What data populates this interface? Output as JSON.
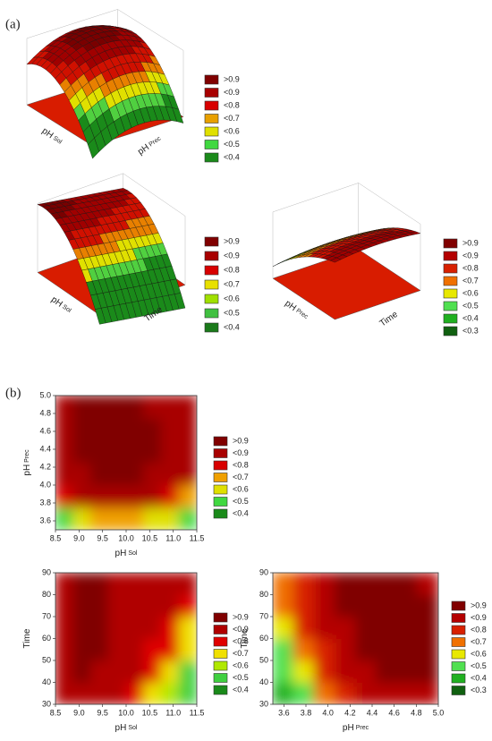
{
  "panels": [
    {
      "label": "(a)"
    },
    {
      "label": "(b)"
    }
  ],
  "chart_data": [
    {
      "type": "surface3d",
      "xlabel": "pH",
      "xlabel_sub": "Sol",
      "ylabel": "pH",
      "ylabel_sub": "Prec",
      "levels": [
        {
          "value": 0.9,
          "label": ">0.9",
          "color": "#800000"
        },
        {
          "value": 0.9,
          "label": "<0.9",
          "color": "#a80000"
        },
        {
          "value": 0.8,
          "label": "<0.8",
          "color": "#d80000"
        },
        {
          "value": 0.7,
          "label": "<0.7",
          "color": "#e8a000"
        },
        {
          "value": 0.6,
          "label": "<0.6",
          "color": "#e0e000"
        },
        {
          "value": 0.5,
          "label": "<0.5",
          "color": "#40d840"
        },
        {
          "value": 0.4,
          "label": "<0.4",
          "color": "#1a8a1a"
        }
      ]
    },
    {
      "type": "surface3d",
      "xlabel": "pH",
      "xlabel_sub": "Sol",
      "ylabel": "Time",
      "ylabel_sub": null,
      "levels": [
        {
          "value": 0.9,
          "label": ">0.9",
          "color": "#800000"
        },
        {
          "value": 0.9,
          "label": "<0.9",
          "color": "#a80000"
        },
        {
          "value": 0.8,
          "label": "<0.8",
          "color": "#d80000"
        },
        {
          "value": 0.7,
          "label": "<0.7",
          "color": "#e8e000"
        },
        {
          "value": 0.6,
          "label": "<0.6",
          "color": "#a0e000"
        },
        {
          "value": 0.5,
          "label": "<0.5",
          "color": "#40c040"
        },
        {
          "value": 0.4,
          "label": "<0.4",
          "color": "#1a7a1a"
        }
      ]
    },
    {
      "type": "surface3d",
      "xlabel": "pH",
      "xlabel_sub": "Prec",
      "ylabel": "Time",
      "ylabel_sub": null,
      "levels": [
        {
          "value": 0.9,
          "label": ">0.9",
          "color": "#800000"
        },
        {
          "value": 0.9,
          "label": "<0.9",
          "color": "#b40000"
        },
        {
          "value": 0.8,
          "label": "<0.8",
          "color": "#d82000"
        },
        {
          "value": 0.7,
          "label": "<0.7",
          "color": "#f07000"
        },
        {
          "value": 0.6,
          "label": "<0.6",
          "color": "#e8e800"
        },
        {
          "value": 0.5,
          "label": "<0.5",
          "color": "#50e050"
        },
        {
          "value": 0.4,
          "label": "<0.4",
          "color": "#20b020"
        },
        {
          "value": 0.3,
          "label": "<0.3",
          "color": "#106010"
        }
      ]
    },
    {
      "type": "contour",
      "xlabel": "pH",
      "xlabel_sub": "Sol",
      "ylabel": "pH",
      "ylabel_sub": "Prec",
      "xlim": [
        8.5,
        11.5
      ],
      "xticks": [
        8.5,
        {
          "value": 9,
          "label": "9.0"
        },
        9.5,
        {
          "value": 10,
          "label": "10.0"
        },
        10.5,
        {
          "value": 11,
          "label": "11.0"
        },
        11.5
      ],
      "ylim": [
        3.5,
        5.0
      ],
      "yticks": [
        3.6,
        3.8,
        {
          "value": 4,
          "label": "4.0"
        },
        4.2,
        4.4,
        4.6,
        4.8,
        {
          "value": 5,
          "label": "5.0"
        }
      ],
      "z": [
        [
          0.45,
          0.55,
          0.6,
          0.6,
          0.6,
          0.55,
          0.5,
          0.4
        ],
        [
          0.72,
          0.8,
          0.83,
          0.84,
          0.83,
          0.8,
          0.75,
          0.68
        ],
        [
          0.84,
          0.88,
          0.9,
          0.91,
          0.9,
          0.88,
          0.85,
          0.8
        ],
        [
          0.88,
          0.92,
          0.94,
          0.94,
          0.93,
          0.91,
          0.88,
          0.84
        ],
        [
          0.88,
          0.92,
          0.94,
          0.94,
          0.93,
          0.91,
          0.88,
          0.84
        ],
        [
          0.86,
          0.9,
          0.92,
          0.92,
          0.91,
          0.89,
          0.86,
          0.82
        ]
      ],
      "levels": [
        {
          "value": 0.9,
          "label": ">0.9",
          "color": "#800000"
        },
        {
          "value": 0.9,
          "label": "<0.9",
          "color": "#a80000"
        },
        {
          "value": 0.8,
          "label": "<0.8",
          "color": "#d80000"
        },
        {
          "value": 0.7,
          "label": "<0.7",
          "color": "#f0a000"
        },
        {
          "value": 0.6,
          "label": "<0.6",
          "color": "#e0e000"
        },
        {
          "value": 0.5,
          "label": "<0.5",
          "color": "#40d840"
        },
        {
          "value": 0.4,
          "label": "<0.4",
          "color": "#1a8a1a"
        }
      ]
    },
    {
      "type": "contour",
      "xlabel": "pH",
      "xlabel_sub": "Sol",
      "ylabel": "Time",
      "ylabel_sub": null,
      "xlim": [
        8.5,
        11.5
      ],
      "xticks": [
        8.5,
        {
          "value": 9,
          "label": "9.0"
        },
        9.5,
        {
          "value": 10,
          "label": "10.0"
        },
        10.5,
        {
          "value": 11,
          "label": "11.0"
        },
        11.5
      ],
      "ylim": [
        30,
        90
      ],
      "yticks": [
        30,
        40,
        50,
        60,
        70,
        80,
        90
      ],
      "z": [
        [
          0.86,
          0.88,
          0.87,
          0.83,
          0.76,
          0.65,
          0.52,
          0.4
        ],
        [
          0.87,
          0.9,
          0.89,
          0.86,
          0.8,
          0.72,
          0.6,
          0.48
        ],
        [
          0.88,
          0.91,
          0.9,
          0.88,
          0.84,
          0.78,
          0.7,
          0.6
        ],
        [
          0.88,
          0.91,
          0.91,
          0.89,
          0.86,
          0.82,
          0.76,
          0.68
        ],
        [
          0.88,
          0.91,
          0.91,
          0.89,
          0.87,
          0.85,
          0.81,
          0.76
        ],
        [
          0.87,
          0.9,
          0.9,
          0.89,
          0.88,
          0.86,
          0.84,
          0.8
        ]
      ],
      "levels": [
        {
          "value": 0.9,
          "label": ">0.9",
          "color": "#800000"
        },
        {
          "value": 0.9,
          "label": "<0.9",
          "color": "#b00000"
        },
        {
          "value": 0.8,
          "label": "<0.8",
          "color": "#e00000"
        },
        {
          "value": 0.7,
          "label": "<0.7",
          "color": "#f0e000"
        },
        {
          "value": 0.6,
          "label": "<0.6",
          "color": "#b0e800"
        },
        {
          "value": 0.5,
          "label": "<0.5",
          "color": "#40d040"
        },
        {
          "value": 0.4,
          "label": "<0.4",
          "color": "#1a8a1a"
        }
      ]
    },
    {
      "type": "contour",
      "xlabel": "pH",
      "xlabel_sub": "Prec",
      "ylabel": "Time",
      "ylabel_sub": null,
      "xlim": [
        3.5,
        5.0
      ],
      "xticks": [
        3.6,
        3.8,
        {
          "value": 4,
          "label": "4.0"
        },
        4.2,
        4.4,
        4.6,
        4.8,
        {
          "value": 5,
          "label": "5.0"
        }
      ],
      "ylim": [
        30,
        90
      ],
      "yticks": [
        30,
        40,
        50,
        60,
        70,
        80,
        90
      ],
      "z": [
        [
          0.3,
          0.45,
          0.6,
          0.72,
          0.8,
          0.85,
          0.88,
          0.88
        ],
        [
          0.4,
          0.55,
          0.7,
          0.8,
          0.86,
          0.9,
          0.92,
          0.91
        ],
        [
          0.48,
          0.63,
          0.77,
          0.85,
          0.9,
          0.93,
          0.94,
          0.92
        ],
        [
          0.55,
          0.7,
          0.82,
          0.88,
          0.92,
          0.94,
          0.94,
          0.92
        ],
        [
          0.6,
          0.75,
          0.85,
          0.9,
          0.92,
          0.93,
          0.93,
          0.9
        ],
        [
          0.62,
          0.78,
          0.86,
          0.9,
          0.92,
          0.92,
          0.91,
          0.88
        ]
      ],
      "levels": [
        {
          "value": 0.9,
          "label": ">0.9",
          "color": "#800000"
        },
        {
          "value": 0.9,
          "label": "<0.9",
          "color": "#b40000"
        },
        {
          "value": 0.8,
          "label": "<0.8",
          "color": "#d82000"
        },
        {
          "value": 0.7,
          "label": "<0.7",
          "color": "#f07000"
        },
        {
          "value": 0.6,
          "label": "<0.6",
          "color": "#e8e800"
        },
        {
          "value": 0.5,
          "label": "<0.5",
          "color": "#50e050"
        },
        {
          "value": 0.4,
          "label": "<0.4",
          "color": "#20b020"
        },
        {
          "value": 0.3,
          "label": "<0.3",
          "color": "#106010"
        }
      ]
    }
  ]
}
